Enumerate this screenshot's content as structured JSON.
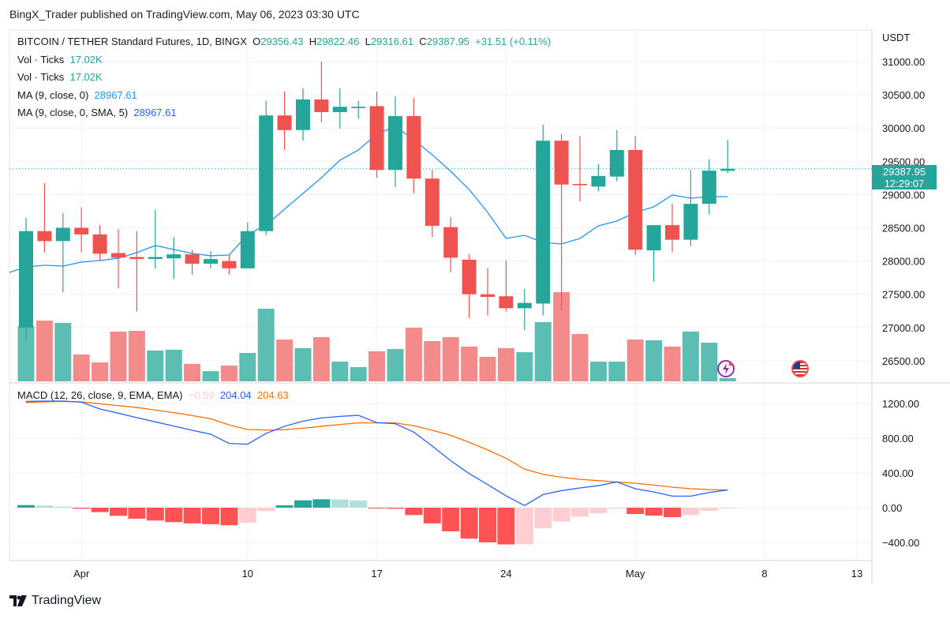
{
  "publish_line": "BingX_Trader published on TradingView.com, May 06, 2023 03:30 UTC",
  "legend": {
    "symbol": "BITCOIN / TETHER Standard Futures, 1D, BINGX",
    "open_label": "O",
    "open": "29356.43",
    "high_label": "H",
    "high": "29822.46",
    "low_label": "L",
    "low": "29316.61",
    "close_label": "C",
    "close": "29387.95",
    "change": "+31.51 (+0.11%)",
    "vol1_label": "Vol · Ticks",
    "vol1_value": "17.02K",
    "vol2_label": "Vol · Ticks",
    "vol2_value": "17.02K",
    "ma1_label": "MA (9, close, 0)",
    "ma1_value": "28967.61",
    "ma2_label": "MA (9, close, 0, SMA, 5)",
    "ma2_value": "28967.61"
  },
  "macd_legend": {
    "label": "MACD (12, 26, close, 9, EMA, EMA)",
    "histogram": "−0.59",
    "macd": "204.04",
    "signal": "204.63"
  },
  "price_axis": {
    "currency": "USDT",
    "ticks": [
      "31000.00",
      "30500.00",
      "30000.00",
      "29500.00",
      "29000.00",
      "28500.00",
      "28000.00",
      "27500.00",
      "27000.00",
      "26500.00"
    ],
    "current_price": "29387.95",
    "countdown": "12:29:07"
  },
  "macd_axis": {
    "ticks": [
      "1200.00",
      "800.00",
      "400.00",
      "0.00",
      "−400.00"
    ]
  },
  "time_axis": {
    "ticks": [
      "Apr",
      "10",
      "17",
      "24",
      "May",
      "8",
      "13"
    ]
  },
  "footer": {
    "brand": "TradingView"
  },
  "icons": [
    "lightning-icon",
    "us-flag-icon",
    "tradingview-logo-icon"
  ],
  "colors": {
    "up": "#26a69a",
    "down": "#ef5350",
    "ma": "#2196f3",
    "macd": "#2962ff",
    "signal": "#ff6d00",
    "hist_up_strong": "#26a69a",
    "hist_up_weak": "#b2dfdb",
    "hist_down_strong": "#ff5252",
    "hist_down_weak": "#ffcdd2"
  },
  "chart_data": {
    "type": "candlestick",
    "dates": [
      "Mar 29",
      "Mar 30",
      "Mar 31",
      "Apr 1",
      "Apr 2",
      "Apr 3",
      "Apr 4",
      "Apr 5",
      "Apr 6",
      "Apr 7",
      "Apr 8",
      "Apr 9",
      "Apr 10",
      "Apr 11",
      "Apr 12",
      "Apr 13",
      "Apr 14",
      "Apr 15",
      "Apr 16",
      "Apr 17",
      "Apr 18",
      "Apr 19",
      "Apr 20",
      "Apr 21",
      "Apr 22",
      "Apr 23",
      "Apr 24",
      "Apr 25",
      "Apr 26",
      "Apr 27",
      "Apr 28",
      "Apr 29",
      "Apr 30",
      "May 1",
      "May 2",
      "May 3",
      "May 4",
      "May 5",
      "May 6"
    ],
    "ohlc": [
      [
        27000,
        28650,
        26800,
        28450
      ],
      [
        28450,
        29170,
        28130,
        28300
      ],
      [
        28300,
        28720,
        27530,
        28500
      ],
      [
        28500,
        28810,
        28130,
        28400
      ],
      [
        28400,
        28540,
        28000,
        28110
      ],
      [
        28120,
        28480,
        27590,
        28050
      ],
      [
        28060,
        28450,
        27240,
        28030
      ],
      [
        28030,
        28770,
        27890,
        28060
      ],
      [
        28040,
        28360,
        27730,
        28100
      ],
      [
        28100,
        28170,
        27790,
        27960
      ],
      [
        27960,
        28150,
        27890,
        28030
      ],
      [
        28000,
        28100,
        27800,
        27890
      ],
      [
        27890,
        28580,
        27890,
        28450
      ],
      [
        28450,
        30410,
        28390,
        30190
      ],
      [
        30190,
        30550,
        29670,
        29970
      ],
      [
        29970,
        30600,
        29810,
        30430
      ],
      [
        30430,
        31000,
        30090,
        30240
      ],
      [
        30240,
        30600,
        29990,
        30320
      ],
      [
        30300,
        30410,
        30140,
        30320
      ],
      [
        30330,
        30550,
        29250,
        29370
      ],
      [
        29370,
        30480,
        29110,
        30180
      ],
      [
        30180,
        30450,
        29020,
        29240
      ],
      [
        29240,
        29370,
        28360,
        28530
      ],
      [
        28510,
        28660,
        27830,
        28050
      ],
      [
        28020,
        28100,
        27140,
        27500
      ],
      [
        27500,
        27890,
        27180,
        27460
      ],
      [
        27470,
        28010,
        27240,
        27290
      ],
      [
        27290,
        27580,
        26960,
        27370
      ],
      [
        27360,
        30050,
        27180,
        29810
      ],
      [
        29810,
        29910,
        27260,
        29150
      ],
      [
        29160,
        29880,
        28900,
        29140
      ],
      [
        29120,
        29460,
        29050,
        29280
      ],
      [
        29270,
        29970,
        29200,
        29670
      ],
      [
        29670,
        29880,
        28090,
        28170
      ],
      [
        28160,
        28540,
        27690,
        28540
      ],
      [
        28540,
        28860,
        28130,
        28320
      ],
      [
        28320,
        29370,
        28220,
        28860
      ],
      [
        28860,
        29530,
        28700,
        29360
      ],
      [
        29356.43,
        29822.46,
        29316.61,
        29387.95
      ]
    ],
    "volume_k": [
      298,
      327,
      315,
      145,
      102,
      268,
      272,
      166,
      170,
      94,
      55,
      85,
      153,
      391,
      225,
      179,
      238,
      106,
      77,
      162,
      174,
      289,
      217,
      238,
      187,
      132,
      179,
      157,
      319,
      480,
      255,
      106,
      106,
      225,
      221,
      187,
      268,
      208,
      17.02
    ],
    "ma9": [
      27912,
      27936,
      27924,
      27984,
      28007,
      28043,
      28126,
      28233,
      28174,
      28114,
      28079,
      28090,
      28399,
      28542,
      28779,
      29017,
      29254,
      29516,
      29670,
      29907,
      30026,
      29824,
      29599,
      29349,
      29076,
      28732,
      28340,
      28387,
      28280,
      28257,
      28340,
      28530,
      28601,
      28732,
      28815,
      28993,
      28945,
      28967.61,
      28967.61
    ],
    "macd": [
      1224,
      1227,
      1227,
      1215,
      1136,
      1088,
      1036,
      988,
      940,
      891,
      846,
      740,
      731,
      855,
      937,
      997,
      1033,
      1051,
      1063,
      979,
      967,
      870,
      710,
      541,
      393,
      266,
      136,
      24,
      151,
      196,
      227,
      254,
      296,
      218,
      181,
      133,
      133,
      175,
      204.04
    ],
    "signal": [
      1211,
      1218,
      1224,
      1218,
      1196,
      1175,
      1154,
      1124,
      1094,
      1060,
      1024,
      952,
      900,
      894,
      897,
      915,
      937,
      958,
      976,
      976,
      976,
      943,
      891,
      834,
      752,
      665,
      568,
      444,
      384,
      350,
      326,
      311,
      296,
      281,
      260,
      236,
      218,
      208,
      204.63
    ],
    "histogram": [
      30,
      24,
      12,
      -12,
      -51,
      -94,
      -127,
      -148,
      -166,
      -181,
      -190,
      -202,
      -175,
      -39,
      27,
      85,
      97,
      94,
      82,
      -6,
      -12,
      -85,
      -181,
      -272,
      -356,
      -399,
      -423,
      -420,
      -236,
      -160,
      -103,
      -63,
      -12,
      -73,
      -91,
      -109,
      -85,
      -36,
      -0.59
    ],
    "price_range": [
      26300,
      31200
    ],
    "macd_range": [
      -500,
      1350
    ],
    "grid": true
  }
}
